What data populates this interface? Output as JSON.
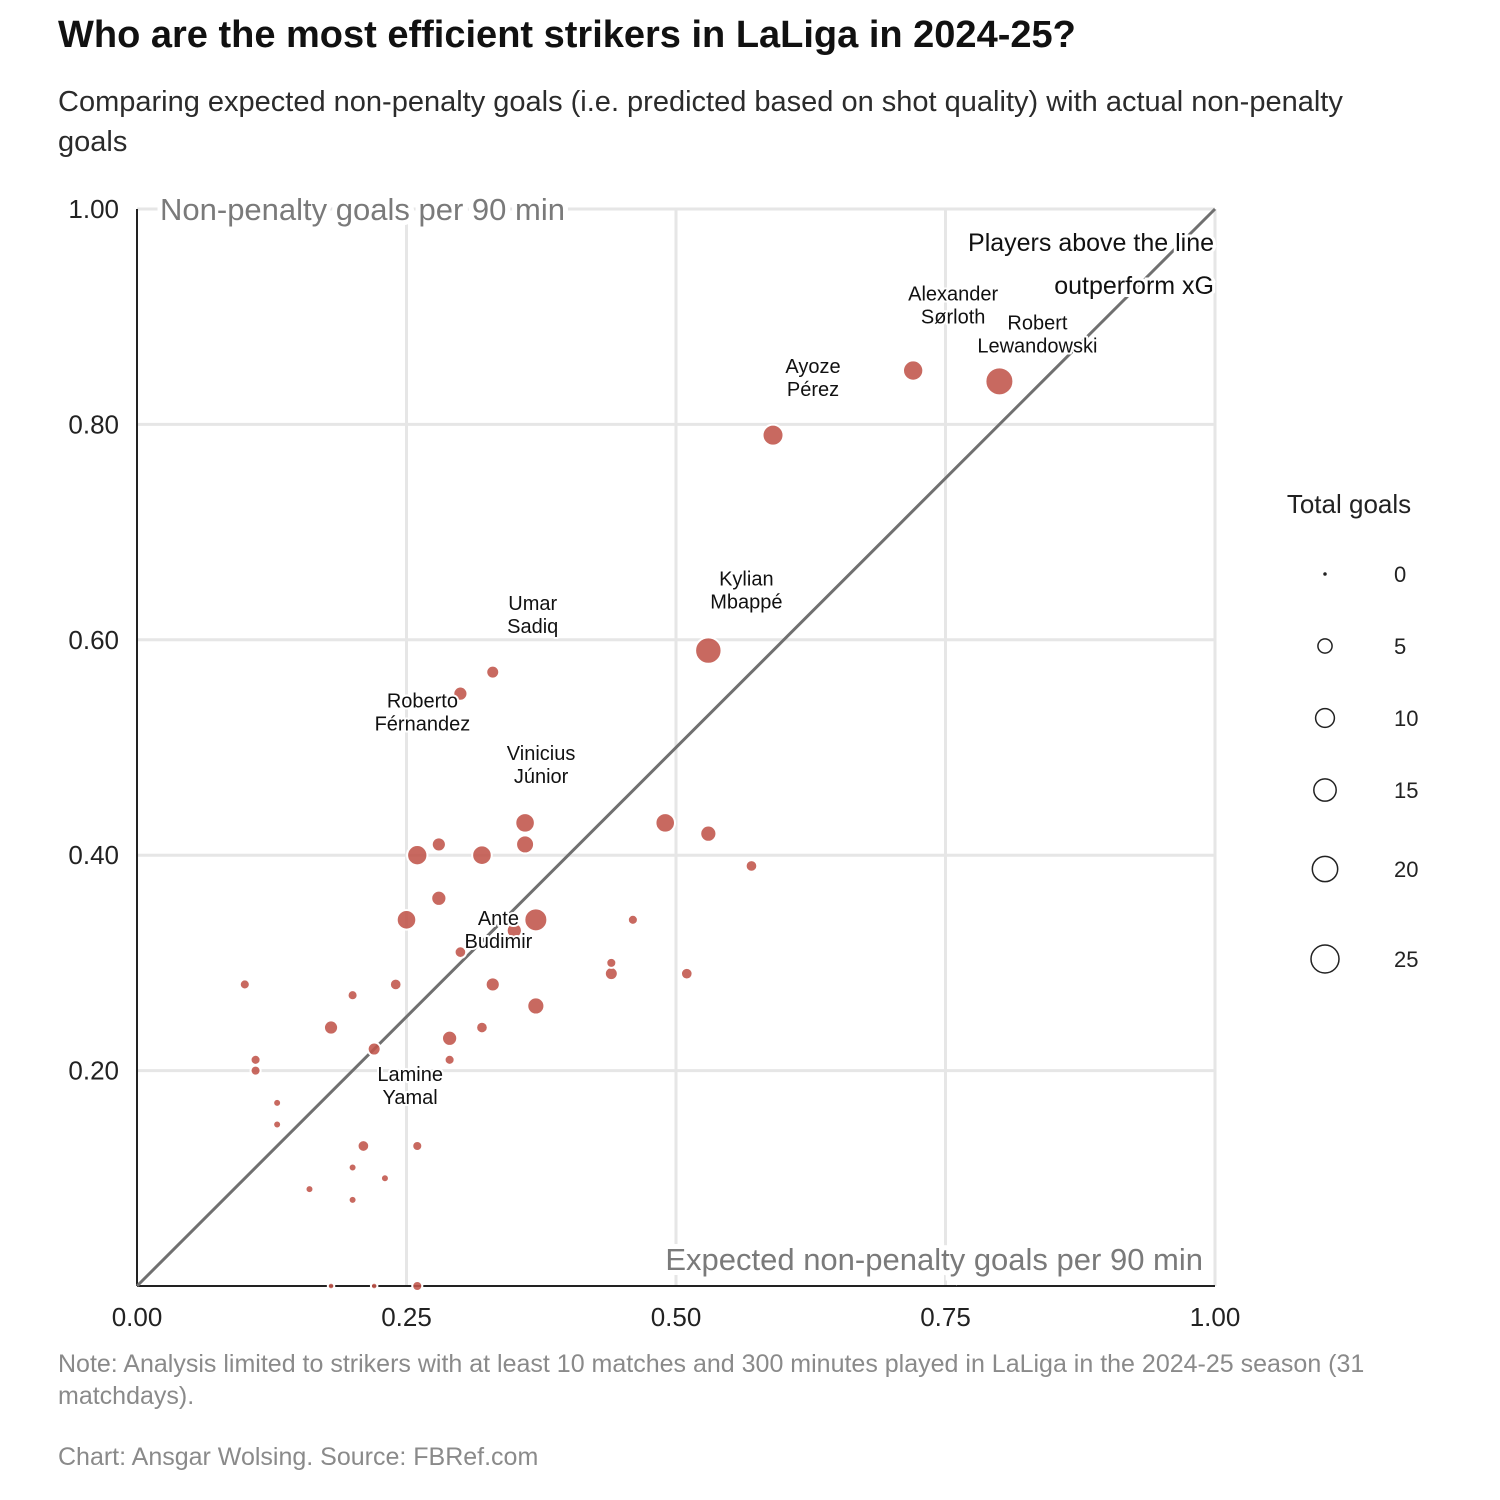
{
  "title": "Who are the most efficient strikers in LaLiga in 2024-25?",
  "subtitle": "Comparing expected non-penalty goals (i.e. predicted based on shot quality) with actual non-penalty goals",
  "note": "Note: Analysis limited to strikers with at least 10 matches and 300 minutes played in LaLiga in the 2024-25 season (31 matchdays).",
  "credit": "Chart: Ansgar Wolsing. Source: FBRef.com",
  "colors": {
    "point": "#c0544a",
    "diagonal": "#707070",
    "grid": "#e6e6e6",
    "axis_title": "#7a7a7a"
  },
  "chart_data": {
    "type": "scatter",
    "xlabel": "Expected non-penalty goals per 90 min",
    "ylabel": "Non-penalty goals per 90 min",
    "xlim": [
      0,
      1
    ],
    "ylim": [
      0,
      1
    ],
    "x_ticks": [
      "0.00",
      "0.25",
      "0.50",
      "0.75",
      "1.00"
    ],
    "y_ticks": [
      "0.20",
      "0.40",
      "0.60",
      "0.80",
      "1.00"
    ],
    "grid": true,
    "reference_line": "y = x",
    "annotation": [
      "Players above the line",
      "outperform xG"
    ],
    "size_legend": {
      "title": "Total goals",
      "values": [
        0,
        5,
        10,
        15,
        20,
        25
      ]
    },
    "points": [
      {
        "x": 0.8,
        "y": 0.84,
        "goals": 25,
        "label": [
          "Robert",
          "Lewandowski"
        ]
      },
      {
        "x": 0.72,
        "y": 0.85,
        "goals": 12,
        "label": [
          "Alexander",
          "Sørloth"
        ]
      },
      {
        "x": 0.59,
        "y": 0.79,
        "goals": 13,
        "label": [
          "Ayoze",
          "Pérez"
        ]
      },
      {
        "x": 0.53,
        "y": 0.59,
        "goals": 22,
        "label": [
          "Kylian",
          "Mbappé"
        ]
      },
      {
        "x": 0.33,
        "y": 0.57,
        "goals": 4,
        "label": [
          "Umar",
          "Sadiq"
        ]
      },
      {
        "x": 0.3,
        "y": 0.55,
        "goals": 5,
        "label": [
          "Roberto",
          "Férnandez"
        ]
      },
      {
        "x": 0.36,
        "y": 0.43,
        "goals": 11,
        "label": [
          "Vinicius",
          "Júnior"
        ]
      },
      {
        "x": 0.3,
        "y": 0.31,
        "goals": 3,
        "label": [
          "Ante",
          "Budimir"
        ]
      },
      {
        "x": 0.22,
        "y": 0.22,
        "goals": 4,
        "label": [
          "Lamine",
          "Yamal"
        ]
      },
      {
        "x": 0.36,
        "y": 0.41,
        "goals": 9
      },
      {
        "x": 0.49,
        "y": 0.43,
        "goals": 11
      },
      {
        "x": 0.53,
        "y": 0.42,
        "goals": 7
      },
      {
        "x": 0.57,
        "y": 0.39,
        "goals": 3
      },
      {
        "x": 0.26,
        "y": 0.4,
        "goals": 12
      },
      {
        "x": 0.28,
        "y": 0.41,
        "goals": 5
      },
      {
        "x": 0.32,
        "y": 0.4,
        "goals": 11
      },
      {
        "x": 0.28,
        "y": 0.36,
        "goals": 6
      },
      {
        "x": 0.25,
        "y": 0.34,
        "goals": 11
      },
      {
        "x": 0.37,
        "y": 0.34,
        "goals": 16
      },
      {
        "x": 0.35,
        "y": 0.33,
        "goals": 6
      },
      {
        "x": 0.46,
        "y": 0.34,
        "goals": 2
      },
      {
        "x": 0.44,
        "y": 0.3,
        "goals": 2
      },
      {
        "x": 0.44,
        "y": 0.29,
        "goals": 4
      },
      {
        "x": 0.51,
        "y": 0.29,
        "goals": 3
      },
      {
        "x": 0.33,
        "y": 0.28,
        "goals": 5
      },
      {
        "x": 0.37,
        "y": 0.26,
        "goals": 8
      },
      {
        "x": 0.24,
        "y": 0.28,
        "goals": 3
      },
      {
        "x": 0.2,
        "y": 0.27,
        "goals": 2
      },
      {
        "x": 0.1,
        "y": 0.28,
        "goals": 2
      },
      {
        "x": 0.18,
        "y": 0.24,
        "goals": 5
      },
      {
        "x": 0.29,
        "y": 0.23,
        "goals": 6
      },
      {
        "x": 0.32,
        "y": 0.24,
        "goals": 3
      },
      {
        "x": 0.29,
        "y": 0.21,
        "goals": 2
      },
      {
        "x": 0.11,
        "y": 0.21,
        "goals": 2
      },
      {
        "x": 0.11,
        "y": 0.2,
        "goals": 2
      },
      {
        "x": 0.13,
        "y": 0.17,
        "goals": 1
      },
      {
        "x": 0.13,
        "y": 0.15,
        "goals": 1
      },
      {
        "x": 0.21,
        "y": 0.13,
        "goals": 3
      },
      {
        "x": 0.26,
        "y": 0.13,
        "goals": 2
      },
      {
        "x": 0.2,
        "y": 0.11,
        "goals": 1
      },
      {
        "x": 0.23,
        "y": 0.1,
        "goals": 1
      },
      {
        "x": 0.16,
        "y": 0.09,
        "goals": 1
      },
      {
        "x": 0.2,
        "y": 0.08,
        "goals": 1
      },
      {
        "x": 0.18,
        "y": 0.0,
        "goals": 0.5
      },
      {
        "x": 0.22,
        "y": 0.0,
        "goals": 0.5
      },
      {
        "x": 0.26,
        "y": 0.0,
        "goals": 2
      }
    ]
  }
}
